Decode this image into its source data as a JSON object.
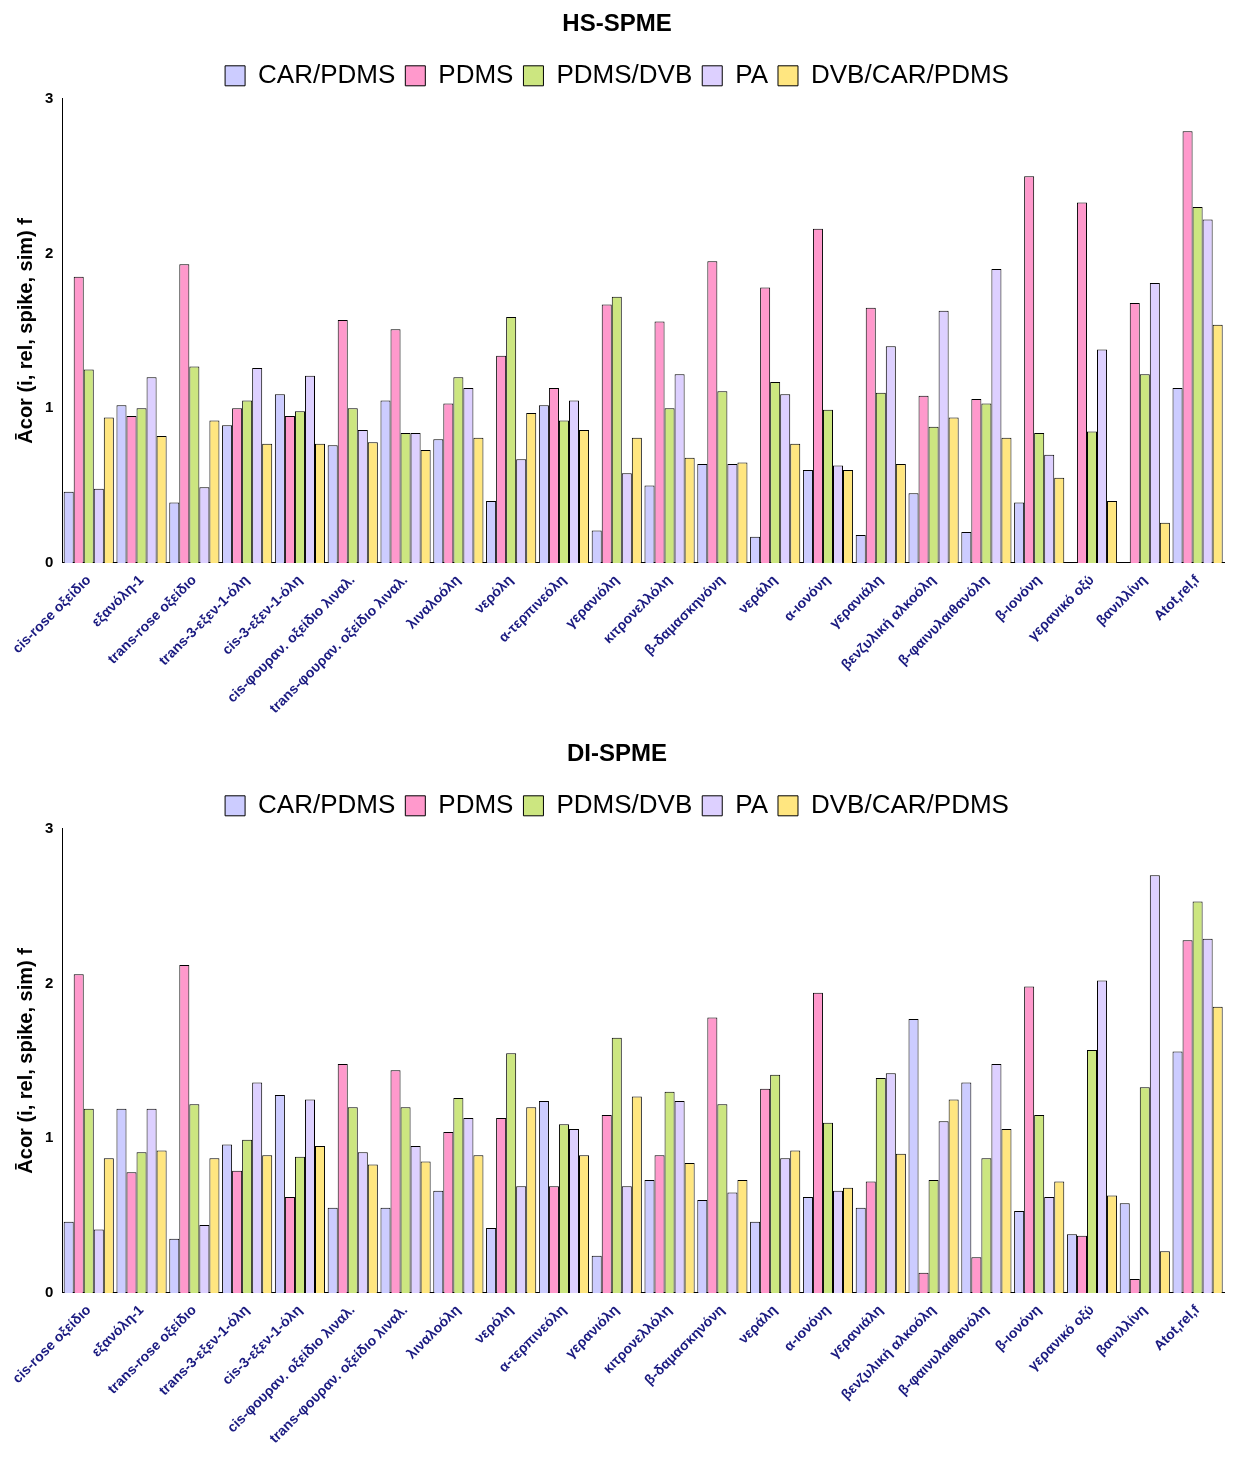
{
  "chart_data": [
    {
      "type": "bar",
      "title": "HS-SPME",
      "ylabel": "Ācor (i, rel, spike, sim) f",
      "categories": [
        "cis-rose οξείδιο",
        "εξανόλη-1",
        "trans-rose οξείδιο",
        "trans-3-εξεν-1-όλη",
        "cis-3-εξεν-1-όλη",
        "cis-φουραν. οξείδιο λιναλ.",
        "trans-φουραν. οξείδιο λιναλ.",
        "λιναλοόλη",
        "νερόλη",
        "α-τερπινεόλη",
        "γερανιόλη",
        "κιτρονελλόλη",
        "β-δαμασκηνόνη",
        "νεράλη",
        "α-ιονόνη",
        "γερανιάλη",
        "βενζυλική αλκοόλη",
        "β-φαινυλαιθανόλη",
        "β-ιονόνη",
        "γερανικό οξύ",
        "βανιλλίνη",
        "Atot,rel,f"
      ],
      "series": [
        {
          "name": "CAR/PDMS",
          "color": "#ccccff",
          "values": [
            0.46,
            1.02,
            0.39,
            0.89,
            1.09,
            0.76,
            1.05,
            0.8,
            0.4,
            1.02,
            0.21,
            0.5,
            0.64,
            0.17,
            0.6,
            0.18,
            0.45,
            0.2,
            0.39,
            0,
            0,
            1.13
          ]
        },
        {
          "name": "PDMS",
          "color": "#ff99cc",
          "values": [
            1.85,
            0.95,
            1.93,
            1.0,
            0.95,
            1.57,
            1.51,
            1.03,
            1.34,
            1.13,
            1.67,
            1.56,
            1.95,
            1.78,
            2.16,
            1.65,
            1.08,
            1.06,
            2.5,
            2.33,
            1.68,
            2.79
          ]
        },
        {
          "name": "PDMS/DVB",
          "color": "#cce680",
          "values": [
            1.25,
            1.0,
            1.27,
            1.05,
            0.98,
            1.0,
            0.84,
            1.2,
            1.59,
            0.92,
            1.72,
            1.0,
            1.11,
            1.17,
            0.99,
            1.1,
            0.88,
            1.03,
            0.84,
            0.85,
            1.22,
            2.3
          ]
        },
        {
          "name": "PA",
          "color": "#ddd0ff",
          "values": [
            0.48,
            1.2,
            0.49,
            1.26,
            1.21,
            0.86,
            0.84,
            1.13,
            0.67,
            1.05,
            0.58,
            1.22,
            0.64,
            1.09,
            0.63,
            1.4,
            1.63,
            1.9,
            0.7,
            1.38,
            1.81,
            2.22
          ]
        },
        {
          "name": "DVB/CAR/PDMS",
          "color": "#ffe680",
          "values": [
            0.94,
            0.82,
            0.92,
            0.77,
            0.77,
            0.78,
            0.73,
            0.81,
            0.97,
            0.86,
            0.81,
            0.68,
            0.65,
            0.77,
            0.6,
            0.64,
            0.94,
            0.81,
            0.55,
            0.4,
            0.26,
            1.54
          ]
        }
      ],
      "ylim": [
        0,
        3
      ],
      "yticks": [
        0,
        1,
        2,
        3
      ],
      "grid": false,
      "legend": "top"
    },
    {
      "type": "bar",
      "title": "DI-SPME",
      "ylabel": "Ācor (i, rel, spike, sim) f",
      "categories": [
        "cis-rose οξείδιο",
        "εξανόλη-1",
        "trans-rose οξείδιο",
        "trans-3-εξεν-1-όλη",
        "cis-3-εξεν-1-όλη",
        "cis-φουραν. οξείδιο λιναλ.",
        "trans-φουραν. οξείδιο λιναλ.",
        "λιναλοόλη",
        "νερόλη",
        "α-τερπινεόλη",
        "γερανιόλη",
        "κιτρονελλόλη",
        "β-δαμασκηνόνη",
        "νεράλη",
        "α-ιονόνη",
        "γερανιάλη",
        "βενζυλική αλκοόλη",
        "β-φαινυλαιθανόλη",
        "β-ιονόνη",
        "γερανικό οξύ",
        "βανιλλίνη",
        "Atot,rel,f"
      ],
      "series": [
        {
          "name": "CAR/PDMS",
          "color": "#ccccff",
          "values": [
            0.46,
            1.19,
            0.35,
            0.96,
            1.28,
            0.55,
            0.55,
            0.66,
            0.42,
            1.24,
            0.24,
            0.73,
            0.6,
            0.46,
            0.62,
            0.55,
            1.77,
            1.36,
            0.53,
            0.38,
            0.58,
            1.56
          ]
        },
        {
          "name": "PDMS",
          "color": "#ff99cc",
          "values": [
            2.06,
            0.78,
            2.12,
            0.79,
            0.62,
            1.48,
            1.44,
            1.04,
            1.13,
            0.69,
            1.15,
            0.89,
            1.78,
            1.32,
            1.94,
            0.72,
            0.13,
            0.23,
            1.98,
            0.37,
            0.09,
            2.28
          ]
        },
        {
          "name": "PDMS/DVB",
          "color": "#cce680",
          "values": [
            1.19,
            0.91,
            1.22,
            0.99,
            0.88,
            1.2,
            1.2,
            1.26,
            1.55,
            1.09,
            1.65,
            1.3,
            1.22,
            1.41,
            1.1,
            1.39,
            0.73,
            0.87,
            1.15,
            1.57,
            1.33,
            2.53
          ]
        },
        {
          "name": "PA",
          "color": "#ddd0ff",
          "values": [
            0.41,
            1.19,
            0.44,
            1.36,
            1.25,
            0.91,
            0.95,
            1.13,
            0.69,
            1.06,
            0.69,
            1.24,
            0.65,
            0.87,
            0.66,
            1.42,
            1.11,
            1.48,
            0.62,
            2.02,
            2.7,
            2.29
          ]
        },
        {
          "name": "DVB/CAR/PDMS",
          "color": "#ffe680",
          "values": [
            0.87,
            0.92,
            0.87,
            0.89,
            0.95,
            0.83,
            0.85,
            0.89,
            1.2,
            0.89,
            1.27,
            0.84,
            0.73,
            0.92,
            0.68,
            0.9,
            1.25,
            1.06,
            0.72,
            0.63,
            0.27,
            1.85
          ]
        }
      ],
      "ylim": [
        0,
        3
      ],
      "yticks": [
        0,
        1,
        2,
        3
      ],
      "grid": false,
      "legend": "top"
    }
  ]
}
